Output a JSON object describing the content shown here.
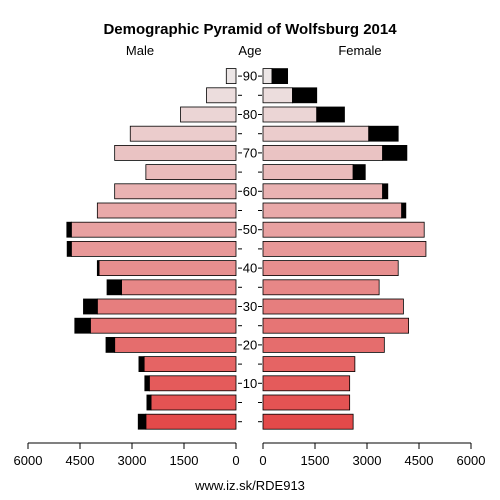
{
  "chart_data": {
    "type": "bar",
    "title": "Demographic Pyramid of Wolfsburg 2014",
    "left_label": "Male",
    "center_label": "Age",
    "right_label": "Female",
    "footer": "www.iz.sk/RDE913",
    "age_groups": [
      "0-4",
      "5-9",
      "10-14",
      "15-19",
      "20-24",
      "25-29",
      "30-34",
      "35-39",
      "40-44",
      "45-49",
      "50-54",
      "55-59",
      "60-64",
      "65-69",
      "70-74",
      "75-79",
      "80-84",
      "85-89",
      "90+"
    ],
    "age_tick_labels": [
      "10",
      "20",
      "30",
      "40",
      "50",
      "60",
      "70",
      "80",
      "90"
    ],
    "age_tick_groups": [
      2,
      4,
      6,
      8,
      10,
      12,
      14,
      16,
      18
    ],
    "x_ticks_left": [
      "6000",
      "4500",
      "3000",
      "1500",
      "0"
    ],
    "x_ticks_right": [
      "0",
      "1500",
      "3000",
      "4500",
      "6000"
    ],
    "xlim": [
      0,
      6000
    ],
    "series": [
      {
        "name": "Male",
        "values": [
          2600,
          2450,
          2500,
          2650,
          3500,
          4200,
          4000,
          3300,
          3950,
          4750,
          4750,
          4000,
          3500,
          2600,
          3500,
          3050,
          1600,
          850,
          280
        ],
        "extra": [
          220,
          120,
          130,
          150,
          250,
          450,
          400,
          420,
          50,
          120,
          130,
          0,
          0,
          0,
          0,
          0,
          0,
          0,
          0
        ]
      },
      {
        "name": "Female",
        "values": [
          2600,
          2500,
          2500,
          2650,
          3500,
          4200,
          4050,
          3350,
          3900,
          4700,
          4650,
          4000,
          3450,
          2600,
          3450,
          3050,
          1550,
          850,
          260
        ],
        "extra": [
          0,
          0,
          0,
          0,
          0,
          0,
          0,
          0,
          0,
          0,
          0,
          120,
          150,
          350,
          700,
          850,
          800,
          700,
          450
        ]
      }
    ],
    "colors": {
      "young": "#e34a4a",
      "old": "#ece6e6",
      "extra": "#000000"
    }
  }
}
